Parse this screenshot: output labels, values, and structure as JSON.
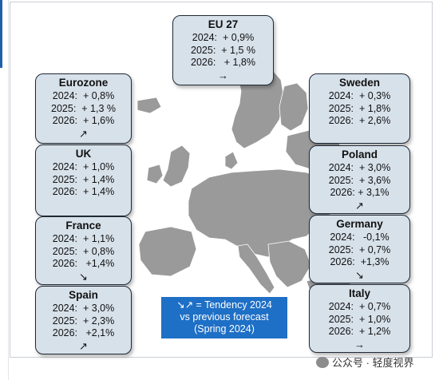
{
  "boxes": {
    "eu27": {
      "title": "EU 27",
      "r2024": "2024:  + 0,9%",
      "r2025": "2025:  + 1,5 %",
      "r2026": "2026:   + 1,8%",
      "arrow": "→",
      "arrow_icon": "arrow-right"
    },
    "eurozone": {
      "title": "Eurozone",
      "r2024": "2024:  + 0,8%",
      "r2025": "2025:  + 1,3 %",
      "r2026": "2026:  + 1,6%",
      "arrow": "↗",
      "arrow_icon": "arrow-up-right"
    },
    "uk": {
      "title": "UK",
      "r2024": "2024:  + 1,0%",
      "r2025": "2025:  + 1,4%",
      "r2026": "2026:  + 1,4%",
      "arrow": "",
      "arrow_icon": ""
    },
    "france": {
      "title": "France",
      "r2024": "2024:  + 1,1%",
      "r2025": "2025:  + 0,8%",
      "r2026": "2026:   +1,4%",
      "arrow": "↘",
      "arrow_icon": "arrow-down-right"
    },
    "spain": {
      "title": "Spain",
      "r2024": "2024:  + 3,0%",
      "r2025": "2025:  + 2,3%",
      "r2026": "2026:   +2,1%",
      "arrow": "↗",
      "arrow_icon": "arrow-up-right"
    },
    "sweden": {
      "title": "Sweden",
      "r2024": "2024:  + 0,3%",
      "r2025": "2025:  + 1,8%",
      "r2026": "2026:  + 2,6%",
      "arrow": "",
      "arrow_icon": ""
    },
    "poland": {
      "title": "Poland",
      "r2024": "2024:  + 3,0%",
      "r2025": "2025:  + 3,6%",
      "r2026": "2026: + 3,1%",
      "arrow": "↗",
      "arrow_icon": "arrow-up-right"
    },
    "germany": {
      "title": "Germany",
      "r2024": "2024:   -0,1%",
      "r2025": "2025:  + 0,7%",
      "r2026": "2026:  +1,3%",
      "arrow": "↘",
      "arrow_icon": "arrow-down-right"
    },
    "italy": {
      "title": "Italy",
      "r2024": "2024:  + 0,7%",
      "r2025": "2025:  + 1,0%",
      "r2026": "2026:  + 1,2%",
      "arrow": "→",
      "arrow_icon": "arrow-right"
    }
  },
  "legend": {
    "line1": "↘↗ = Tendency 2024",
    "line2": "vs previous forecast",
    "line3": "(Spring 2024)"
  },
  "watermark": {
    "text": "公众号 · 轻度视界"
  },
  "colors": {
    "box_fill": "#d7e1ea",
    "legend_fill": "#1e6fc6",
    "map_fill": "#9a9a9a",
    "accent": "#1f5fa9"
  }
}
